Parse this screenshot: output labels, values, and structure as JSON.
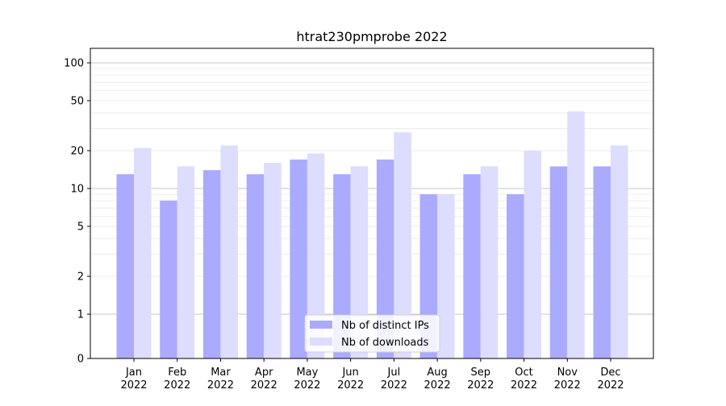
{
  "chart_data": {
    "type": "bar",
    "title": "htrat230pmprobe 2022",
    "xlabel": "",
    "ylabel": "",
    "yscale": "symlog",
    "ylim": [
      0,
      120
    ],
    "yticks": [
      0,
      1,
      2,
      5,
      10,
      20,
      50,
      100
    ],
    "grid": true,
    "legend_position": "bottom-center",
    "categories": [
      "Jan\n2022",
      "Feb\n2022",
      "Mar\n2022",
      "Apr\n2022",
      "May\n2022",
      "Jun\n2022",
      "Jul\n2022",
      "Aug\n2022",
      "Sep\n2022",
      "Oct\n2022",
      "Nov\n2022",
      "Dec\n2022"
    ],
    "series": [
      {
        "name": "Nb of distinct IPs",
        "color": "#aaaaff",
        "values": [
          13,
          8,
          14,
          13,
          17,
          13,
          17,
          9,
          13,
          9,
          15,
          15
        ]
      },
      {
        "name": "Nb of downloads",
        "color": "#ddddff",
        "values": [
          21,
          15,
          22,
          16,
          19,
          15,
          28,
          9,
          15,
          20,
          41,
          22
        ]
      }
    ]
  }
}
